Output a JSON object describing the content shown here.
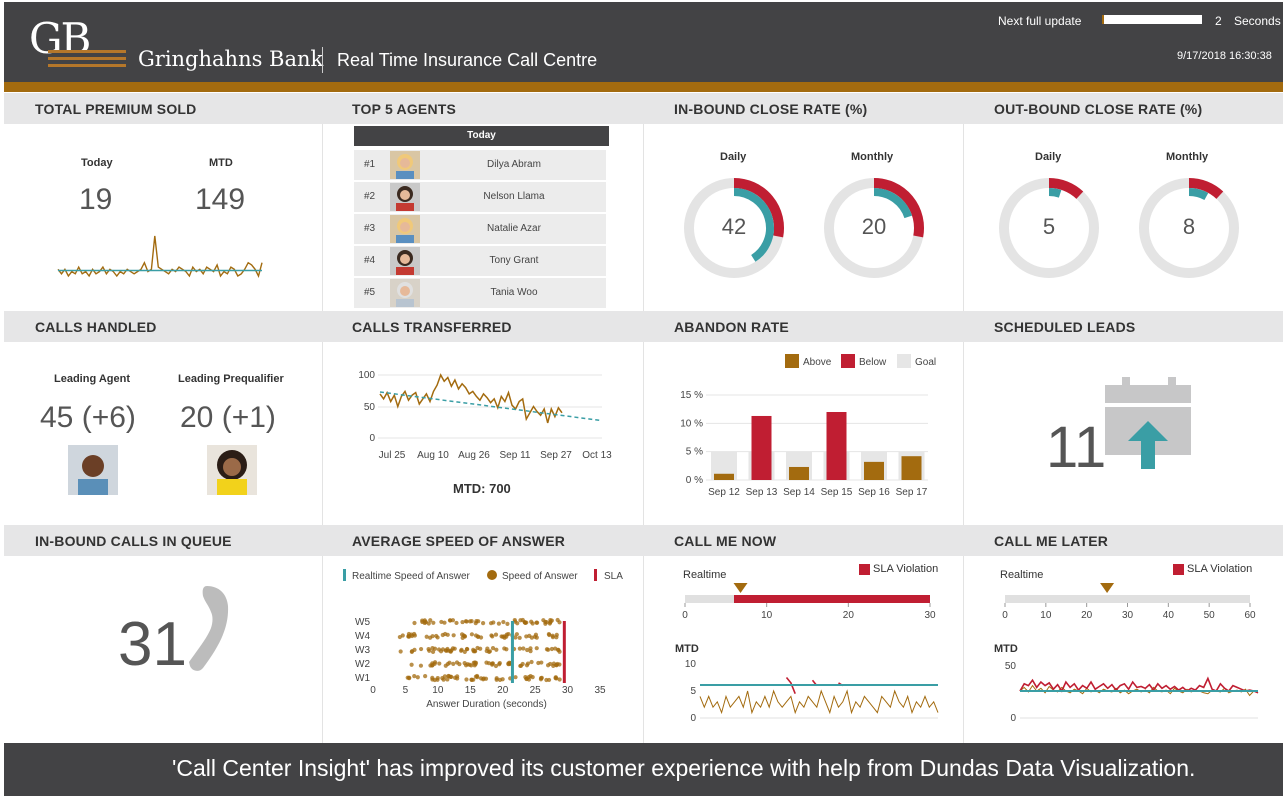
{
  "header": {
    "logo_mark": "GB",
    "bank_name": "Gringhahns Bank",
    "app_title": "Real Time Insurance Call Centre",
    "update_label": "Next full update",
    "update_progress": 0.02,
    "update_value": "2",
    "update_unit": "Seconds",
    "datetime": "9/17/2018  16:30:38"
  },
  "colors": {
    "gold": "#a36b0f",
    "red": "#c01e32",
    "teal": "#3a9ea5",
    "dark": "#434345",
    "ring": "#e4e4e4"
  },
  "panels": {
    "total_premium": {
      "title": "TOTAL PREMIUM SOLD",
      "today_label": "Today",
      "today_value": "19",
      "mtd_label": "MTD",
      "mtd_value": "149"
    },
    "top_agents": {
      "title": "TOP 5 AGENTS",
      "header": "Today",
      "agents": [
        {
          "rank": "#1",
          "name": "Dilya Abram",
          "photo": "avatar-blonde-woman"
        },
        {
          "rank": "#2",
          "name": "Nelson Llama",
          "photo": "avatar-man-red-shirt"
        },
        {
          "rank": "#3",
          "name": "Natalie Azar",
          "photo": "avatar-blonde-woman"
        },
        {
          "rank": "#4",
          "name": "Tony Grant",
          "photo": "avatar-man-red-shirt"
        },
        {
          "rank": "#5",
          "name": "Tania Woo",
          "photo": "avatar-older-woman"
        }
      ]
    },
    "inbound_close": {
      "title": "IN-BOUND CLOSE RATE (%)",
      "daily_label": "Daily",
      "daily_value": "42",
      "monthly_label": "Monthly",
      "monthly_value": "20"
    },
    "outbound_close": {
      "title": "OUT-BOUND CLOSE RATE (%)",
      "daily_label": "Daily",
      "daily_value": "5",
      "monthly_label": "Monthly",
      "monthly_value": "8"
    },
    "calls_handled": {
      "title": "CALLS HANDLED",
      "agent_label": "Leading Agent",
      "agent_value": "45 (+6)",
      "prequal_label": "Leading Prequalifier",
      "prequal_value": "20 (+1)"
    },
    "calls_transferred": {
      "title": "CALLS TRANSFERRED",
      "mtd": "MTD: 700"
    },
    "abandon_rate": {
      "title": "ABANDON RATE"
    },
    "scheduled_leads": {
      "title": "SCHEDULED LEADS",
      "value": "11"
    },
    "inbound_queue": {
      "title": "IN-BOUND CALLS IN QUEUE",
      "value": "31"
    },
    "avg_speed": {
      "title": "AVERAGE SPEED OF ANSWER"
    },
    "call_me_now": {
      "title": "CALL ME NOW",
      "realtime_label": "Realtime",
      "mtd_label": "MTD",
      "sla_label": "SLA Violation"
    },
    "call_me_later": {
      "title": "CALL ME LATER",
      "realtime_label": "Realtime",
      "mtd_label": "MTD",
      "sla_label": "SLA Violation"
    }
  },
  "footer": {
    "text": "'Call Center Insight' has improved its customer experience with help from Dundas Data Visualization."
  },
  "chart_data": [
    {
      "id": "premium_sparkline",
      "type": "line",
      "values": [
        3,
        1,
        3,
        0,
        2,
        1,
        4,
        1,
        2,
        0,
        3,
        1,
        2,
        4,
        1,
        3,
        2,
        0,
        2,
        1,
        3,
        2,
        1,
        2,
        3,
        6,
        2,
        3,
        18,
        4,
        3,
        2,
        1,
        3,
        2,
        4,
        3,
        2,
        0,
        4,
        2,
        3,
        1,
        4,
        3,
        2,
        5,
        0,
        2,
        1,
        4,
        3,
        0,
        1,
        3,
        6,
        5,
        3,
        0,
        6
      ],
      "average": 2.5
    },
    {
      "id": "inbound_close_daily",
      "type": "pie",
      "values": {
        "value": 42,
        "outer_arc_percent": 28,
        "inner_arc_percent": 41
      }
    },
    {
      "id": "inbound_close_monthly",
      "type": "pie",
      "values": {
        "value": 20,
        "outer_arc_percent": 28,
        "inner_arc_percent": 20
      }
    },
    {
      "id": "outbound_close_daily",
      "type": "pie",
      "values": {
        "value": 5,
        "outer_arc_percent": 12,
        "inner_arc_percent": 5
      }
    },
    {
      "id": "outbound_close_monthly",
      "type": "pie",
      "values": {
        "value": 8,
        "outer_arc_percent": 12,
        "inner_arc_percent": 8
      }
    },
    {
      "id": "calls_transferred",
      "type": "line",
      "x_ticks": [
        "Jul 25",
        "Aug 10",
        "Aug 26",
        "Sep 11",
        "Sep 27",
        "Oct 13"
      ],
      "y_ticks": [
        "100",
        "50",
        "0"
      ],
      "ylim": [
        0,
        110
      ],
      "series": [
        {
          "values": [
            70,
            62,
            72,
            58,
            68,
            50,
            66,
            74,
            60,
            68,
            72,
            54,
            62,
            70,
            58,
            74,
            84,
            100,
            90,
            96,
            82,
            92,
            78,
            86,
            80,
            70,
            74,
            66,
            60,
            70,
            64,
            56,
            62,
            48,
            66,
            58,
            72,
            52,
            46,
            58,
            62,
            30,
            40,
            50,
            42,
            36,
            46,
            24,
            46,
            34,
            48,
            40
          ]
        },
        {
          "start": 73,
          "end": 28
        }
      ]
    },
    {
      "id": "abandon_rate",
      "type": "bar",
      "legend": [
        "Above",
        "Below",
        "Goal"
      ],
      "categories": [
        "Sep 12",
        "Sep 13",
        "Sep 14",
        "Sep 15",
        "Sep 16",
        "Sep 17"
      ],
      "y_ticks": [
        "15 %",
        "10 %",
        "5 %",
        "0 %"
      ],
      "ylim": [
        0,
        15
      ],
      "values": [
        1.1,
        11.3,
        2.3,
        12.0,
        3.2,
        4.2
      ],
      "status": [
        "Above",
        "Below",
        "Above",
        "Below",
        "Above",
        "Above"
      ],
      "goal": 5
    },
    {
      "id": "avg_speed_answer",
      "type": "scatter",
      "legend": [
        "Realtime Speed of Answer",
        "Speed of Answer",
        "SLA"
      ],
      "categories": [
        "W5",
        "W4",
        "W3",
        "W2",
        "W1"
      ],
      "x_ticks": [
        "0",
        "5",
        "10",
        "15",
        "20",
        "25",
        "30",
        "35"
      ],
      "xlim": [
        0,
        35
      ],
      "xlabel": "Answer Duration (seconds)",
      "realtime": 21.5,
      "sla": 29.5
    },
    {
      "id": "call_me_now_realtime",
      "type": "bar",
      "x_ticks": [
        "0",
        "10",
        "20",
        "30"
      ],
      "xlim": [
        0,
        30
      ],
      "marker": 6.8,
      "violation_start": 6.0
    },
    {
      "id": "call_me_now_mtd",
      "type": "line",
      "y_ticks": [
        "10",
        "5",
        "0"
      ],
      "ylim": [
        0,
        10
      ],
      "target": 6.1,
      "series": [
        {
          "values": [
            4,
            2,
            4,
            2,
            3,
            1,
            4,
            2,
            3,
            4,
            2,
            5,
            1,
            3,
            2,
            4,
            2,
            5,
            3,
            2,
            3,
            4,
            1,
            3,
            2,
            4,
            3,
            2,
            5,
            3,
            1,
            4,
            2,
            3,
            5,
            1,
            3,
            2,
            4,
            3,
            2,
            1,
            4,
            3,
            2,
            5,
            3,
            2,
            4,
            1,
            3,
            2,
            4,
            2,
            3,
            1
          ]
        },
        {
          "values": [
            null,
            null,
            null,
            null,
            null,
            null,
            null,
            null,
            null,
            null,
            null,
            null,
            null,
            null,
            null,
            null,
            null,
            null,
            null,
            null,
            7.5,
            6.5,
            4.5,
            null,
            null,
            null,
            7.0,
            6.0,
            null,
            null,
            null,
            null,
            6.5,
            6.0,
            null,
            null,
            null,
            null,
            null,
            null,
            null,
            null,
            null,
            null,
            null,
            null,
            null,
            null,
            null,
            null,
            null,
            null,
            null,
            null,
            null,
            null
          ]
        }
      ]
    },
    {
      "id": "call_me_later_realtime",
      "type": "bar",
      "x_ticks": [
        "0",
        "10",
        "20",
        "30",
        "40",
        "50",
        "60"
      ],
      "xlim": [
        0,
        60
      ],
      "marker": 25
    },
    {
      "id": "call_me_later_mtd",
      "type": "line",
      "y_ticks": [
        "50",
        "0"
      ],
      "ylim": [
        0,
        60
      ],
      "target": 30,
      "series": [
        {
          "values": [
            30,
            34,
            29,
            36,
            30,
            33,
            28,
            35,
            31,
            29,
            34,
            30,
            28,
            32,
            30,
            27,
            33,
            29,
            31,
            28,
            32,
            30,
            29,
            33,
            28,
            31,
            27,
            30,
            32,
            29,
            31,
            28,
            34,
            30,
            29,
            31,
            27,
            33,
            30,
            28,
            32,
            29,
            31,
            30,
            28,
            27,
            31,
            30,
            29,
            33,
            28,
            30,
            31,
            29,
            32,
            25,
            30,
            28
          ]
        },
        {
          "values": [
            30,
            38,
            36,
            42,
            34,
            40,
            36,
            39,
            32,
            37,
            30,
            40,
            34,
            38,
            31,
            36,
            33,
            40,
            32,
            35,
            38,
            33,
            37,
            31,
            36,
            38,
            32,
            40,
            34,
            35,
            33,
            37,
            31,
            38,
            33,
            36,
            32,
            35,
            31,
            34,
            30,
            33,
            31,
            36,
            34,
            44,
            32,
            30,
            38,
            33,
            30,
            36,
            34,
            32,
            30,
            31,
            30,
            28
          ]
        }
      ]
    }
  ]
}
